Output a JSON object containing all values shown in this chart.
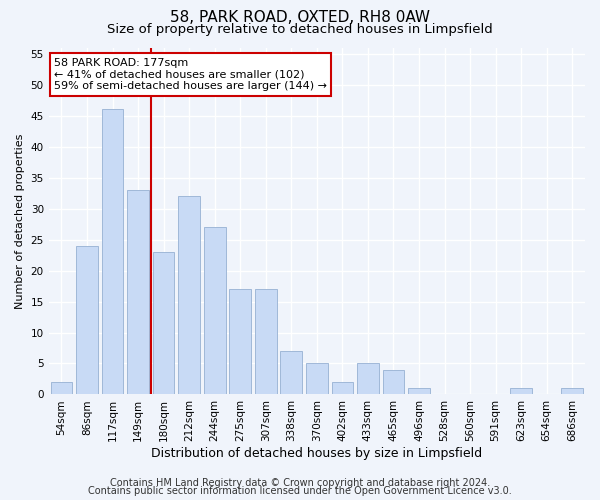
{
  "title": "58, PARK ROAD, OXTED, RH8 0AW",
  "subtitle": "Size of property relative to detached houses in Limpsfield",
  "xlabel": "Distribution of detached houses by size in Limpsfield",
  "ylabel": "Number of detached properties",
  "bar_labels": [
    "54sqm",
    "86sqm",
    "117sqm",
    "149sqm",
    "180sqm",
    "212sqm",
    "244sqm",
    "275sqm",
    "307sqm",
    "338sqm",
    "370sqm",
    "402sqm",
    "433sqm",
    "465sqm",
    "496sqm",
    "528sqm",
    "560sqm",
    "591sqm",
    "623sqm",
    "654sqm",
    "686sqm"
  ],
  "bar_values": [
    2,
    24,
    46,
    33,
    23,
    32,
    27,
    17,
    17,
    7,
    5,
    2,
    5,
    4,
    1,
    0,
    0,
    0,
    1,
    0,
    1
  ],
  "bar_color": "#c8daf5",
  "bar_edge_color": "#a0b8d8",
  "vline_color": "#cc0000",
  "annotation_line1": "58 PARK ROAD: 177sqm",
  "annotation_line2": "← 41% of detached houses are smaller (102)",
  "annotation_line3": "59% of semi-detached houses are larger (144) →",
  "annotation_box_color": "white",
  "annotation_box_edge": "#cc0000",
  "ylim": [
    0,
    56
  ],
  "yticks": [
    0,
    5,
    10,
    15,
    20,
    25,
    30,
    35,
    40,
    45,
    50,
    55
  ],
  "footer1": "Contains HM Land Registry data © Crown copyright and database right 2024.",
  "footer2": "Contains public sector information licensed under the Open Government Licence v3.0.",
  "bg_color": "#f0f4fb",
  "grid_color": "white",
  "title_fontsize": 11,
  "subtitle_fontsize": 9.5,
  "xlabel_fontsize": 9,
  "ylabel_fontsize": 8,
  "tick_fontsize": 7.5,
  "annotation_fontsize": 8,
  "footer_fontsize": 7
}
